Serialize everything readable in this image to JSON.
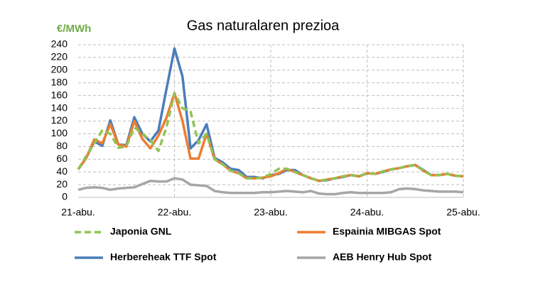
{
  "chart_data": {
    "type": "line",
    "title": "Gas naturalaren prezioa",
    "y_label": "€/MWh",
    "categories": [
      "21-abu.",
      null,
      null,
      null,
      null,
      null,
      null,
      null,
      null,
      null,
      null,
      null,
      "22-abu.",
      null,
      null,
      null,
      null,
      null,
      null,
      null,
      null,
      null,
      null,
      null,
      "23-abu.",
      null,
      null,
      null,
      null,
      null,
      null,
      null,
      null,
      null,
      null,
      null,
      "24-abu.",
      null,
      null,
      null,
      null,
      null,
      null,
      null,
      null,
      null,
      null,
      null,
      "25-abu."
    ],
    "series": [
      {
        "name": "AEB Henry Hub Spot",
        "color": "#a6a6a6",
        "dash": "solid",
        "values": [
          12,
          15,
          16,
          15,
          12,
          14,
          15,
          16,
          21,
          26,
          25,
          25,
          30,
          28,
          20,
          19,
          18,
          10,
          8,
          7,
          7,
          7,
          7,
          8,
          8,
          9,
          10,
          9,
          8,
          10,
          6,
          5,
          5,
          7,
          8,
          7,
          7,
          7,
          7,
          8,
          13,
          14,
          13,
          11,
          10,
          9,
          9,
          9,
          8
        ]
      },
      {
        "name": "Herbereheak TTF Spot",
        "color": "#4a7ebb",
        "dash": "solid",
        "values": [
          44,
          62,
          88,
          81,
          121,
          83,
          82,
          126,
          100,
          88,
          105,
          170,
          234,
          190,
          77,
          90,
          115,
          62,
          55,
          45,
          43,
          32,
          32,
          30,
          35,
          37,
          43,
          43,
          35,
          30,
          26,
          27,
          30,
          32,
          35,
          33,
          38,
          37,
          40,
          44,
          46,
          49,
          51,
          43,
          35,
          35,
          37,
          34,
          33
        ]
      },
      {
        "name": "Espainia MIBGAS Spot",
        "color": "#ed7d31",
        "dash": "solid",
        "values": [
          44,
          62,
          91,
          85,
          115,
          83,
          80,
          120,
          92,
          77,
          97,
          125,
          164,
          120,
          61,
          61,
          100,
          60,
          52,
          42,
          38,
          30,
          30,
          31,
          33,
          38,
          45,
          40,
          35,
          30,
          26,
          28,
          30,
          33,
          35,
          33,
          38,
          37,
          41,
          44,
          46,
          49,
          51,
          42,
          35,
          35,
          37,
          34,
          33
        ]
      },
      {
        "name": "Japonia GNL",
        "color": "#92c353",
        "dash": "dashed",
        "values": [
          44,
          65,
          85,
          105,
          100,
          78,
          80,
          110,
          100,
          90,
          73,
          110,
          164,
          140,
          135,
          85,
          100,
          60,
          52,
          42,
          38,
          30,
          30,
          31,
          37,
          45,
          45,
          40,
          35,
          30,
          26,
          28,
          30,
          33,
          35,
          33,
          38,
          37,
          41,
          44,
          46,
          49,
          51,
          42,
          35,
          35,
          37,
          34,
          33
        ]
      }
    ],
    "ylim": [
      0,
      240
    ],
    "yticks": [
      0,
      20,
      40,
      60,
      80,
      100,
      120,
      140,
      160,
      180,
      200,
      220,
      240
    ],
    "grid": true,
    "legend_order": [
      3,
      2,
      1,
      0
    ]
  }
}
